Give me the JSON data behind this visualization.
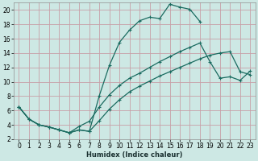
{
  "xlabel": "Humidex (Indice chaleur)",
  "xlim": [
    -0.5,
    23.5
  ],
  "ylim": [
    2,
    21
  ],
  "xticks": [
    0,
    1,
    2,
    3,
    4,
    5,
    6,
    7,
    8,
    9,
    10,
    11,
    12,
    13,
    14,
    15,
    16,
    17,
    18,
    19,
    20,
    21,
    22,
    23
  ],
  "yticks": [
    2,
    4,
    6,
    8,
    10,
    12,
    14,
    16,
    18,
    20
  ],
  "bg_color": "#cde8e4",
  "grid_color": "#c8a0a8",
  "line_color": "#1a6b60",
  "line1_x": [
    0,
    1,
    2,
    3,
    4,
    5,
    6,
    7,
    8,
    9,
    10,
    11,
    12,
    13,
    14,
    15,
    16,
    17,
    18
  ],
  "line1_y": [
    6.5,
    4.8,
    4.0,
    3.7,
    3.3,
    2.9,
    3.3,
    3.1,
    8.1,
    12.3,
    15.5,
    17.2,
    18.5,
    19.0,
    18.8,
    20.8,
    20.4,
    20.1,
    18.4
  ],
  "line2_x": [
    0,
    1,
    2,
    3,
    4,
    5,
    6,
    7,
    8,
    9,
    10,
    11,
    12,
    13,
    14,
    15,
    16,
    17,
    18,
    19,
    20,
    21,
    22,
    23
  ],
  "line2_y": [
    6.5,
    4.8,
    4.0,
    3.7,
    3.3,
    2.9,
    3.8,
    4.5,
    6.5,
    8.2,
    9.5,
    10.5,
    11.2,
    12.0,
    12.8,
    13.5,
    14.2,
    14.8,
    15.4,
    12.8,
    10.5,
    10.7,
    10.2,
    11.5
  ],
  "line3_x": [
    0,
    1,
    2,
    3,
    4,
    5,
    6,
    7,
    8,
    9,
    10,
    11,
    12,
    13,
    14,
    15,
    16,
    17,
    18,
    19,
    20,
    21,
    22,
    23
  ],
  "line3_y": [
    6.5,
    4.8,
    4.0,
    3.7,
    3.3,
    2.9,
    3.3,
    3.1,
    4.6,
    6.2,
    7.5,
    8.6,
    9.4,
    10.1,
    10.8,
    11.4,
    12.0,
    12.6,
    13.2,
    13.7,
    14.0,
    14.2,
    11.4,
    11.0
  ]
}
